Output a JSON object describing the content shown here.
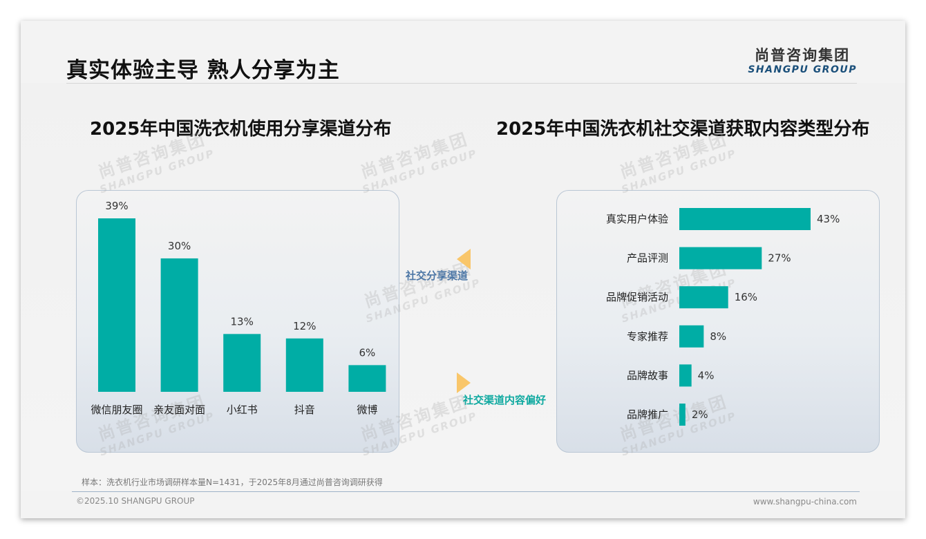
{
  "page": {
    "title": "真实体验主导 熟人分享为主",
    "logo_cn": "尚普咨询集团",
    "logo_en": "SHANGPU GROUP",
    "watermark_cn": "尚普咨询集团",
    "watermark_en": "SHANGPU GROUP",
    "footnote": "样本：洗衣机行业市场调研样本量N=1431，于2025年8月通过尚普咨询调研获得",
    "copyright": "©2025.10 SHANGPU GROUP",
    "website": "www.shangpu-china.com",
    "channel_share_label": "社交分享渠道",
    "channel_content_label": "社交渠道内容偏好"
  },
  "colors": {
    "bar": "#00ada5",
    "accent_triangle": "#f9c66a",
    "share_label": "#4d77a6",
    "content_label": "#0fa9a0"
  },
  "chart_data": [
    {
      "type": "bar",
      "title": "2025年中国洗衣机使用分享渠道分布",
      "orientation": "vertical",
      "categories": [
        "微信朋友圈",
        "亲友面对面",
        "小红书",
        "抖音",
        "微博"
      ],
      "values": [
        39,
        30,
        13,
        12,
        6
      ],
      "data_labels": [
        "39%",
        "30%",
        "13%",
        "12%",
        "6%"
      ],
      "unit": "%",
      "ylim": [
        0,
        39
      ],
      "grid": false
    },
    {
      "type": "bar",
      "title": "2025年中国洗衣机社交渠道获取内容类型分布",
      "orientation": "horizontal",
      "categories": [
        "真实用户体验",
        "产品评测",
        "品牌促销活动",
        "专家推荐",
        "品牌故事",
        "品牌推广"
      ],
      "values": [
        43,
        27,
        16,
        8,
        4,
        2
      ],
      "data_labels": [
        "43%",
        "27%",
        "16%",
        "8%",
        "4%",
        "2%"
      ],
      "unit": "%",
      "xlim": [
        0,
        43
      ],
      "grid": false
    }
  ]
}
